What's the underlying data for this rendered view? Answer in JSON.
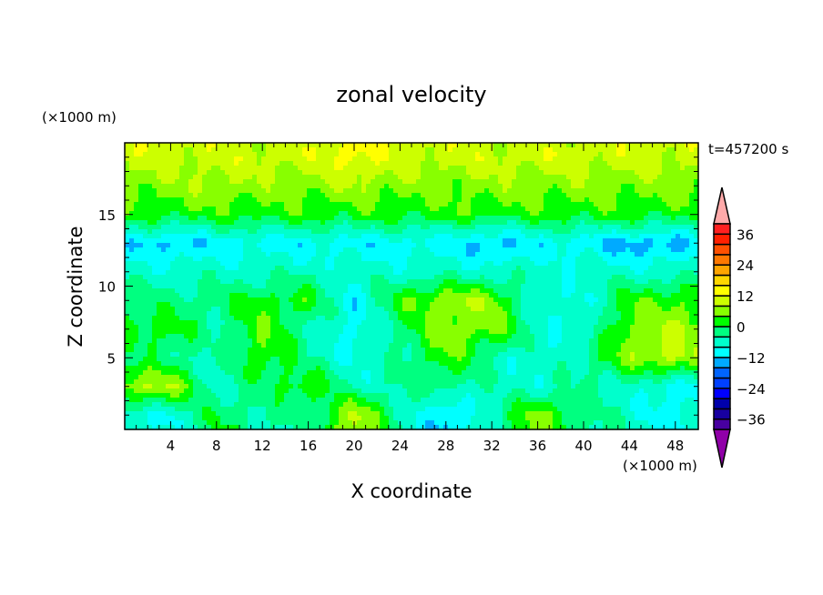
{
  "chart_data": {
    "type": "heatmap",
    "title": "zonal velocity",
    "xlabel": "X coordinate",
    "ylabel": "Z coordinate",
    "x_unit_label": "(×1000 m)",
    "y_unit_label": "(×1000 m)",
    "time_label": "t=457200 s",
    "xlim": [
      0,
      50
    ],
    "ylim": [
      0,
      20
    ],
    "x_ticks": [
      4,
      8,
      12,
      16,
      20,
      24,
      28,
      32,
      36,
      40,
      44,
      48
    ],
    "y_ticks": [
      5,
      10,
      15
    ],
    "grid_x": [
      0,
      4,
      8,
      12,
      16,
      20,
      24,
      28,
      32,
      36,
      40,
      44,
      48,
      50
    ],
    "grid_z": [
      1,
      3,
      5,
      7,
      9,
      11,
      13,
      15,
      17,
      19
    ],
    "values_by_z": [
      [
        -8,
        -8,
        0,
        -4,
        -4,
        10,
        -4,
        -14,
        -4,
        6,
        -2,
        -6,
        -10,
        -8
      ],
      [
        8,
        8,
        -6,
        -2,
        4,
        -6,
        -4,
        -2,
        -6,
        -6,
        -4,
        -6,
        -10,
        -8
      ],
      [
        -2,
        -2,
        -6,
        4,
        -4,
        -8,
        -4,
        4,
        -4,
        -8,
        -4,
        6,
        10,
        6
      ],
      [
        2,
        2,
        -4,
        4,
        -4,
        -10,
        -2,
        6,
        6,
        -6,
        -8,
        6,
        8,
        6
      ],
      [
        -2,
        -2,
        -2,
        2,
        2,
        -10,
        2,
        8,
        6,
        -8,
        -8,
        2,
        4,
        4
      ],
      [
        -6,
        -6,
        -6,
        -6,
        -5,
        -6,
        -6,
        -6,
        -6,
        -6,
        -6,
        -6,
        -6,
        -6
      ],
      [
        -10,
        -14,
        -10,
        -10,
        -10,
        -10,
        -10,
        -10,
        -14,
        -10,
        -10,
        -14,
        -14,
        -10
      ],
      [
        2,
        2,
        2,
        2,
        2,
        2,
        2,
        2,
        2,
        2,
        2,
        2,
        2,
        2
      ],
      [
        6,
        6,
        8,
        6,
        6,
        8,
        6,
        6,
        6,
        6,
        6,
        6,
        6,
        6
      ],
      [
        10,
        10,
        10,
        10,
        10,
        14,
        10,
        10,
        10,
        10,
        10,
        10,
        10,
        10
      ]
    ],
    "colorbar": {
      "levels": [
        -40,
        -36,
        -32,
        -28,
        -24,
        -20,
        -16,
        -12,
        -8,
        -4,
        0,
        4,
        8,
        12,
        16,
        20,
        24,
        28,
        32,
        36,
        40
      ],
      "tick_labels": [
        "36",
        "24",
        "12",
        "0",
        "−12",
        "−24",
        "−36"
      ],
      "tick_values": [
        36,
        24,
        12,
        0,
        -12,
        -24,
        -36
      ],
      "colors": [
        "#4800a0",
        "#1800a0",
        "#0000aa",
        "#0000ff",
        "#0040ff",
        "#0064ff",
        "#00aaff",
        "#00ffff",
        "#00ffcc",
        "#00ff80",
        "#00ff00",
        "#88ff00",
        "#ccff00",
        "#ffff00",
        "#ffd700",
        "#ffa500",
        "#ff7800",
        "#ff5000",
        "#ff2000",
        "#ff2020"
      ],
      "over_color": "#ffaaaa",
      "under_color": "#9000a8"
    }
  }
}
